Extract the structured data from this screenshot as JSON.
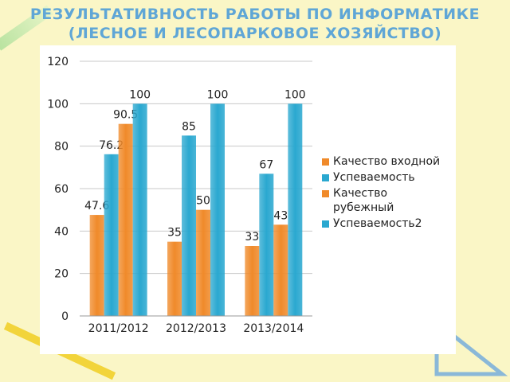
{
  "chart_data": {
    "type": "bar",
    "title": "РЕЗУЛЬТАТИВНОСТЬ РАБОТЫ ПО ИНФОРМАТИКЕ (ЛЕСНОЕ И ЛЕСОПАРКОВОЕ ХОЗЯЙСТВО)",
    "categories": [
      "2011/2012",
      "2012/2013",
      "2013/2014"
    ],
    "series": [
      {
        "name": "Качество входной",
        "color": "#f08a2a",
        "values": [
          47.6,
          35,
          33
        ]
      },
      {
        "name": "Успеваемость",
        "color": "#2aa8d0",
        "values": [
          76.2,
          85,
          67
        ]
      },
      {
        "name": "Качество рубежный",
        "color": "#f08a2a",
        "values": [
          90.5,
          50,
          43
        ]
      },
      {
        "name": "Успеваемость2",
        "color": "#2aa8d0",
        "values": [
          100,
          100,
          100
        ]
      }
    ],
    "ylim": [
      0,
      120
    ],
    "yticks": [
      0,
      20,
      40,
      60,
      80,
      100,
      120
    ],
    "grid": true,
    "legend": "right"
  }
}
